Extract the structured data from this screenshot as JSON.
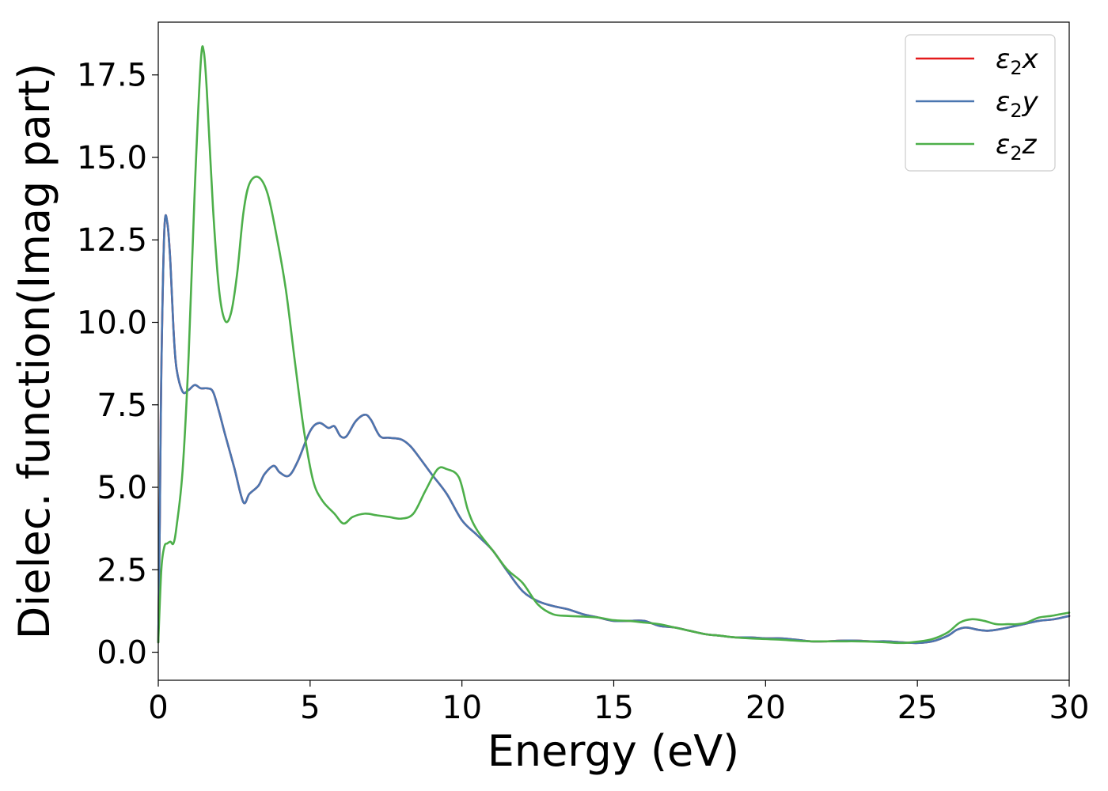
{
  "chart_data": {
    "type": "line",
    "title": "",
    "xlabel": "Energy (eV)",
    "ylabel": "Dielec. function(Imag part)",
    "xlim": [
      0,
      30
    ],
    "ylim": [
      -0.85,
      19.1
    ],
    "xticks": [
      0,
      5,
      10,
      15,
      20,
      25,
      30
    ],
    "xtick_labels": [
      "0",
      "5",
      "10",
      "15",
      "20",
      "25",
      "30"
    ],
    "yticks": [
      0,
      2.5,
      5,
      7.5,
      10,
      12.5,
      15,
      17.5
    ],
    "ytick_labels": [
      "0.0",
      "2.5",
      "5.0",
      "7.5",
      "10.0",
      "12.5",
      "15.0",
      "17.5"
    ],
    "grid": false,
    "legend_position": "top-right",
    "series": [
      {
        "name": "ε2x",
        "legend_base": "ε",
        "legend_sub": "2",
        "legend_var": "x",
        "color": "#e41a1c",
        "x": [
          0,
          0.05,
          0.1,
          0.2,
          0.3,
          0.4,
          0.5,
          0.6,
          0.8,
          1.0,
          1.2,
          1.4,
          1.6,
          1.8,
          2.0,
          2.2,
          2.5,
          2.8,
          3.0,
          3.3,
          3.5,
          3.8,
          4.0,
          4.3,
          4.6,
          5.0,
          5.3,
          5.6,
          5.8,
          6.0,
          6.2,
          6.5,
          6.8,
          7.0,
          7.3,
          7.6,
          8.0,
          8.3,
          8.6,
          9.0,
          9.5,
          10.0,
          10.5,
          11.0,
          11.5,
          12.0,
          12.5,
          13.0,
          13.5,
          14.0,
          14.5,
          15.0,
          15.5,
          16.0,
          16.5,
          17.0,
          17.5,
          18.0,
          18.5,
          19.0,
          19.5,
          20.0,
          20.5,
          21.0,
          21.5,
          22.0,
          22.5,
          23.0,
          23.5,
          24.0,
          24.5,
          25.0,
          25.5,
          26.0,
          26.3,
          26.6,
          27.0,
          27.3,
          27.6,
          28.0,
          28.5,
          29.0,
          29.5,
          30.0
        ],
        "values": [
          0.3,
          4.0,
          8.5,
          12.8,
          13.0,
          11.8,
          9.8,
          8.6,
          7.9,
          7.95,
          8.1,
          8.0,
          8.0,
          7.9,
          7.3,
          6.6,
          5.6,
          4.55,
          4.8,
          5.05,
          5.4,
          5.65,
          5.45,
          5.35,
          5.8,
          6.7,
          6.95,
          6.8,
          6.85,
          6.55,
          6.55,
          7.0,
          7.2,
          7.05,
          6.55,
          6.5,
          6.45,
          6.25,
          5.9,
          5.4,
          4.8,
          4.0,
          3.55,
          3.1,
          2.45,
          1.85,
          1.55,
          1.4,
          1.3,
          1.15,
          1.05,
          0.95,
          0.95,
          0.95,
          0.8,
          0.75,
          0.65,
          0.55,
          0.5,
          0.45,
          0.45,
          0.42,
          0.42,
          0.38,
          0.33,
          0.33,
          0.35,
          0.35,
          0.33,
          0.33,
          0.3,
          0.28,
          0.33,
          0.5,
          0.68,
          0.75,
          0.68,
          0.65,
          0.68,
          0.75,
          0.85,
          0.95,
          1.0,
          1.1
        ]
      },
      {
        "name": "ε2y",
        "legend_base": "ε",
        "legend_sub": "2",
        "legend_var": "y",
        "color": "#4a76b0",
        "x": [
          0,
          0.05,
          0.1,
          0.2,
          0.3,
          0.4,
          0.5,
          0.6,
          0.8,
          1.0,
          1.2,
          1.4,
          1.6,
          1.8,
          2.0,
          2.2,
          2.5,
          2.8,
          3.0,
          3.3,
          3.5,
          3.8,
          4.0,
          4.3,
          4.6,
          5.0,
          5.3,
          5.6,
          5.8,
          6.0,
          6.2,
          6.5,
          6.8,
          7.0,
          7.3,
          7.6,
          8.0,
          8.3,
          8.6,
          9.0,
          9.5,
          10.0,
          10.5,
          11.0,
          11.5,
          12.0,
          12.5,
          13.0,
          13.5,
          14.0,
          14.5,
          15.0,
          15.5,
          16.0,
          16.5,
          17.0,
          17.5,
          18.0,
          18.5,
          19.0,
          19.5,
          20.0,
          20.5,
          21.0,
          21.5,
          22.0,
          22.5,
          23.0,
          23.5,
          24.0,
          24.5,
          25.0,
          25.5,
          26.0,
          26.3,
          26.6,
          27.0,
          27.3,
          27.6,
          28.0,
          28.5,
          29.0,
          29.5,
          30.0
        ],
        "values": [
          0.3,
          4.0,
          8.5,
          12.8,
          13.0,
          11.8,
          9.8,
          8.6,
          7.9,
          7.95,
          8.1,
          8.0,
          8.0,
          7.9,
          7.3,
          6.6,
          5.6,
          4.55,
          4.8,
          5.05,
          5.4,
          5.65,
          5.45,
          5.35,
          5.8,
          6.7,
          6.95,
          6.8,
          6.85,
          6.55,
          6.55,
          7.0,
          7.2,
          7.05,
          6.55,
          6.5,
          6.45,
          6.25,
          5.9,
          5.4,
          4.8,
          4.0,
          3.55,
          3.1,
          2.45,
          1.85,
          1.55,
          1.4,
          1.3,
          1.15,
          1.05,
          0.95,
          0.95,
          0.95,
          0.8,
          0.75,
          0.65,
          0.55,
          0.5,
          0.45,
          0.45,
          0.42,
          0.42,
          0.38,
          0.33,
          0.33,
          0.35,
          0.35,
          0.33,
          0.33,
          0.3,
          0.28,
          0.33,
          0.5,
          0.68,
          0.75,
          0.68,
          0.65,
          0.68,
          0.75,
          0.85,
          0.95,
          1.0,
          1.1
        ]
      },
      {
        "name": "ε2z",
        "legend_base": "ε",
        "legend_sub": "2",
        "legend_var": "z",
        "color": "#4daf4a",
        "x": [
          0,
          0.1,
          0.2,
          0.3,
          0.4,
          0.5,
          0.6,
          0.8,
          1.0,
          1.2,
          1.4,
          1.5,
          1.6,
          1.8,
          2.0,
          2.2,
          2.4,
          2.6,
          2.8,
          3.0,
          3.3,
          3.6,
          3.9,
          4.2,
          4.5,
          4.8,
          5.1,
          5.4,
          5.8,
          6.1,
          6.4,
          6.8,
          7.2,
          7.6,
          8.0,
          8.4,
          8.8,
          9.2,
          9.5,
          9.9,
          10.2,
          10.5,
          11.0,
          11.5,
          12.0,
          12.5,
          13.0,
          13.5,
          14.0,
          14.5,
          15.0,
          15.5,
          16.0,
          16.5,
          17.0,
          17.5,
          18.0,
          18.5,
          19.0,
          19.5,
          20.0,
          20.5,
          21.0,
          21.5,
          22.0,
          22.5,
          23.0,
          23.5,
          24.0,
          24.5,
          25.0,
          25.5,
          26.0,
          26.4,
          26.8,
          27.2,
          27.6,
          28.0,
          28.3,
          28.6,
          29.0,
          29.4,
          29.7,
          30.0
        ],
        "values": [
          0.3,
          2.5,
          3.2,
          3.3,
          3.35,
          3.3,
          3.8,
          5.5,
          9.0,
          14.0,
          17.9,
          18.2,
          17.0,
          13.5,
          11.0,
          10.05,
          10.3,
          11.5,
          13.3,
          14.2,
          14.4,
          13.9,
          12.6,
          11.0,
          8.8,
          6.7,
          5.2,
          4.6,
          4.2,
          3.9,
          4.1,
          4.2,
          4.15,
          4.1,
          4.05,
          4.2,
          4.9,
          5.55,
          5.55,
          5.3,
          4.3,
          3.7,
          3.1,
          2.5,
          2.1,
          1.45,
          1.15,
          1.1,
          1.08,
          1.05,
          0.97,
          0.95,
          0.9,
          0.85,
          0.75,
          0.65,
          0.55,
          0.5,
          0.45,
          0.42,
          0.4,
          0.38,
          0.35,
          0.33,
          0.33,
          0.33,
          0.33,
          0.32,
          0.3,
          0.28,
          0.32,
          0.4,
          0.6,
          0.9,
          1.0,
          0.95,
          0.85,
          0.85,
          0.85,
          0.9,
          1.05,
          1.1,
          1.15,
          1.2
        ]
      }
    ]
  }
}
